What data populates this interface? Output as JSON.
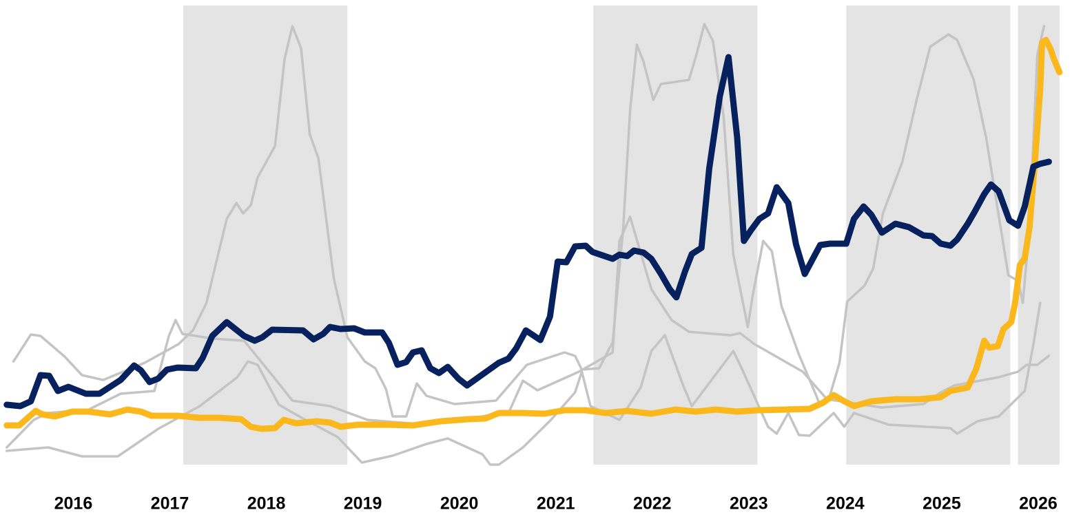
{
  "chart_data": {
    "type": "line",
    "xlim": [
      2015.24,
      2026.35
    ],
    "ylim": [
      0,
      670
    ],
    "xticks": [
      2016,
      2017,
      2018,
      2019,
      2020,
      2021,
      2022,
      2023,
      2024,
      2025,
      2026
    ],
    "shaded": [
      [
        2017.14,
        2018.84
      ],
      [
        2021.39,
        2023.09
      ],
      [
        2024.01,
        2025.71
      ],
      [
        2025.79,
        2026.22
      ]
    ],
    "shade_color": "#e4e4e4",
    "series": [
      {
        "color": "#c4c4c4",
        "x": [
          2015.38,
          2015.56,
          2015.66,
          2015.91,
          2016.09,
          2016.31,
          2016.74,
          2017.09,
          2017.24,
          2017.38,
          2017.59,
          2017.69,
          2017.76,
          2017.84,
          2017.91,
          2018.09,
          2018.19,
          2018.27,
          2018.36,
          2018.45,
          2018.54,
          2018.7,
          2018.84,
          2019.02,
          2019.13,
          2019.24,
          2019.31,
          2019.45,
          2019.56,
          2019.66,
          2019.95,
          2020.38,
          2020.7,
          2021.09,
          2021.2,
          2021.27,
          2021.45,
          2021.59,
          2021.7,
          2021.77,
          2021.84,
          2021.91,
          2022.01,
          2022.09,
          2022.38,
          2022.46,
          2022.54,
          2022.63,
          2022.74,
          2022.84,
          2022.99,
          2023.04,
          2023.15,
          2023.24,
          2023.34,
          2023.52,
          2023.7,
          2023.74,
          2023.84,
          2023.94,
          2024.02,
          2024.2,
          2024.29,
          2024.39,
          2024.59,
          2024.74,
          2024.88,
          2025.07,
          2025.16,
          2025.33,
          2025.46,
          2025.69,
          2025.79,
          2025.84,
          2025.91,
          2025.99,
          2026.06
        ],
        "values": [
          150,
          189,
          187,
          157,
          130,
          123,
          148,
          175,
          195,
          235,
          357,
          380,
          365,
          377,
          417,
          463,
          590,
          637,
          605,
          480,
          445,
          270,
          185,
          150,
          140,
          110,
          70,
          70,
          118,
          100,
          88,
          93,
          145,
          163,
          158,
          138,
          140,
          178,
          345,
          515,
          610,
          585,
          530,
          553,
          559,
          597,
          640,
          615,
          505,
          305,
          200,
          245,
          325,
          310,
          230,
          160,
          100,
          85,
          100,
          148,
          237,
          260,
          285,
          365,
          439,
          530,
          607,
          625,
          617,
          560,
          475,
          275,
          267,
          235,
          345,
          595,
          637
        ]
      },
      {
        "color": "#c4c4c4",
        "x": [
          2015.31,
          2015.59,
          2015.74,
          2016.16,
          2016.49,
          2016.84,
          2016.99,
          2017.06,
          2017.13,
          2017.45,
          2017.77,
          2018.06,
          2018.27,
          2018.66,
          2019.05,
          2019.66,
          2020.24,
          2020.52,
          2020.66,
          2020.81,
          2021.24,
          2021.59,
          2021.66,
          2021.77,
          2021.99,
          2022.2,
          2022.38,
          2022.81,
          2022.91,
          2023.06,
          2023.56,
          2023.81,
          2024.38,
          2024.81,
          2024.99,
          2025.13,
          2025.59,
          2025.79,
          2025.88,
          2025.99,
          2026.11
        ],
        "values": [
          25,
          65,
          75,
          80,
          103,
          107,
          187,
          210,
          190,
          183,
          180,
          130,
          93,
          85,
          65,
          58,
          70,
          78,
          122,
          108,
          135,
          163,
          325,
          360,
          255,
          210,
          193,
          188,
          191,
          175,
          135,
          95,
          83,
          88,
          105,
          115,
          127,
          135,
          145,
          145,
          158
        ]
      },
      {
        "color": "#c4c4c4",
        "x": [
          2015.31,
          2015.74,
          2016.09,
          2016.46,
          2016.88,
          2017.31,
          2017.7,
          2017.81,
          2017.91,
          2018.13,
          2018.38,
          2018.74,
          2018.99,
          2019.31,
          2019.66,
          2019.88,
          2020.24,
          2020.32,
          2020.41,
          2020.66,
          2020.95,
          2021.2,
          2021.27,
          2021.36,
          2021.66,
          2021.88,
          2021.99,
          2022.13,
          2022.32,
          2022.41,
          2022.84,
          2022.91,
          2023.2,
          2023.29,
          2023.41,
          2023.52,
          2023.63,
          2023.88,
          2023.99,
          2024.09,
          2024.45,
          2025.09,
          2025.16,
          2025.37,
          2025.59,
          2025.86,
          2025.95,
          2026.02
        ],
        "values": [
          20,
          25,
          12,
          12,
          52,
          85,
          127,
          150,
          145,
          87,
          67,
          40,
          3,
          13,
          30,
          38,
          15,
          0,
          0,
          25,
          65,
          105,
          135,
          85,
          65,
          112,
          165,
          188,
          115,
          85,
          165,
          145,
          55,
          45,
          75,
          43,
          42,
          75,
          55,
          75,
          58,
          53,
          45,
          63,
          70,
          107,
          175,
          235
        ]
      },
      {
        "color": "#fbb81c",
        "x": [
          2015.31,
          2015.44,
          2015.52,
          2015.61,
          2015.68,
          2015.81,
          2015.99,
          2016.16,
          2016.38,
          2016.56,
          2016.7,
          2016.81,
          2017.09,
          2017.31,
          2017.52,
          2017.74,
          2017.84,
          2017.95,
          2018.09,
          2018.18,
          2018.31,
          2018.52,
          2018.66,
          2018.77,
          2018.95,
          2019.24,
          2019.52,
          2019.81,
          2020.09,
          2020.27,
          2020.41,
          2020.66,
          2020.88,
          2021.09,
          2021.31,
          2021.52,
          2021.74,
          2021.99,
          2022.24,
          2022.45,
          2022.66,
          2022.88,
          2023.09,
          2023.38,
          2023.63,
          2023.77,
          2023.88,
          2023.99,
          2024.09,
          2024.27,
          2024.52,
          2024.77,
          2024.99,
          2025.09,
          2025.27,
          2025.36,
          2025.44,
          2025.49,
          2025.58,
          2025.64,
          2025.72,
          2025.76,
          2025.81,
          2025.86,
          2025.91,
          2025.96,
          2026.02,
          2026.04,
          2026.08,
          2026.13,
          2026.16,
          2026.22
        ],
        "values": [
          57,
          57,
          67,
          78,
          73,
          70,
          77,
          77,
          73,
          80,
          77,
          71,
          71,
          68,
          68,
          66,
          55,
          52,
          53,
          65,
          60,
          63,
          61,
          55,
          58,
          58,
          57,
          63,
          66,
          67,
          75,
          75,
          74,
          79,
          79,
          75,
          78,
          74,
          80,
          77,
          80,
          77,
          79,
          80,
          81,
          90,
          101,
          92,
          85,
          92,
          95,
          95,
          98,
          107,
          112,
          140,
          180,
          170,
          172,
          197,
          207,
          235,
          290,
          300,
          345,
          430,
          545,
          613,
          617,
          603,
          590,
          570
        ]
      },
      {
        "color": "#06215e",
        "x": [
          2015.31,
          2015.45,
          2015.56,
          2015.66,
          2015.75,
          2015.84,
          2015.95,
          2016.13,
          2016.27,
          2016.49,
          2016.63,
          2016.7,
          2016.79,
          2016.88,
          2016.97,
          2017.08,
          2017.27,
          2017.34,
          2017.44,
          2017.59,
          2017.77,
          2017.88,
          2017.96,
          2018.06,
          2018.38,
          2018.49,
          2018.59,
          2018.66,
          2018.77,
          2018.91,
          2019.02,
          2019.2,
          2019.27,
          2019.36,
          2019.45,
          2019.52,
          2019.61,
          2019.7,
          2019.79,
          2019.88,
          2019.99,
          2020.08,
          2020.27,
          2020.41,
          2020.51,
          2020.59,
          2020.69,
          2020.84,
          2020.94,
          2021.02,
          2021.11,
          2021.2,
          2021.31,
          2021.38,
          2021.59,
          2021.66,
          2021.74,
          2021.81,
          2021.91,
          2021.99,
          2022.09,
          2022.18,
          2022.25,
          2022.34,
          2022.41,
          2022.51,
          2022.59,
          2022.7,
          2022.79,
          2022.88,
          2022.95,
          2023.02,
          2023.11,
          2023.2,
          2023.29,
          2023.41,
          2023.49,
          2023.58,
          2023.74,
          2023.84,
          2024.01,
          2024.09,
          2024.19,
          2024.27,
          2024.38,
          2024.52,
          2024.66,
          2024.81,
          2024.9,
          2024.99,
          2025.09,
          2025.16,
          2025.27,
          2025.34,
          2025.44,
          2025.51,
          2025.59,
          2025.7,
          2025.79,
          2025.86,
          2025.95,
          2026.02,
          2026.11
        ],
        "values": [
          87,
          85,
          92,
          130,
          129,
          107,
          113,
          103,
          103,
          123,
          144,
          137,
          120,
          125,
          138,
          141,
          140,
          155,
          187,
          207,
          187,
          180,
          185,
          196,
          195,
          182,
          190,
          200,
          197,
          198,
          192,
          192,
          177,
          145,
          149,
          163,
          166,
          140,
          133,
          142,
          125,
          115,
          134,
          148,
          154,
          169,
          195,
          181,
          215,
          295,
          294,
          317,
          318,
          309,
          299,
          305,
          303,
          311,
          308,
          299,
          277,
          255,
          243,
          281,
          306,
          315,
          430,
          535,
          592,
          475,
          325,
          340,
          357,
          365,
          403,
          380,
          320,
          277,
          319,
          321,
          321,
          357,
          375,
          363,
          337,
          350,
          345,
          333,
          332,
          321,
          318,
          327,
          350,
          367,
          393,
          407,
          397,
          355,
          347,
          375,
          433,
          437,
          440
        ]
      }
    ]
  }
}
